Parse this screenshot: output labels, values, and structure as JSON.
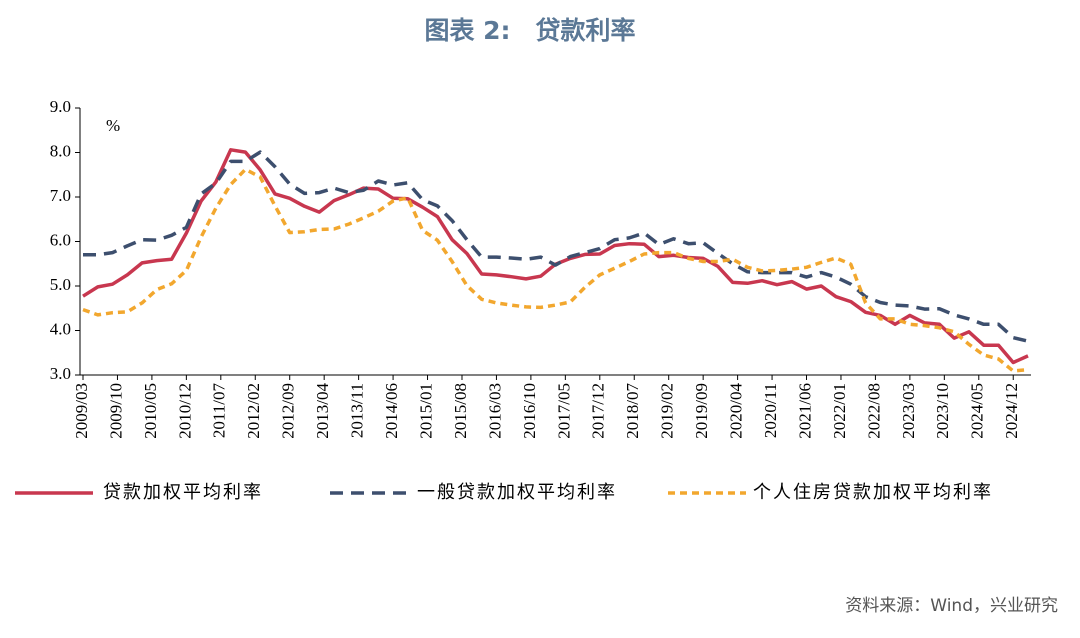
{
  "chart_data": {
    "type": "line",
    "title": "图表 2:　贷款利率",
    "y_unit": "%",
    "source": "资料来源：Wind，兴业研究",
    "x": [
      "2009/03",
      "2009/06",
      "2009/09",
      "2009/12",
      "2010/03",
      "2010/06",
      "2010/09",
      "2010/12",
      "2011/03",
      "2011/06",
      "2011/09",
      "2011/12",
      "2012/03",
      "2012/06",
      "2012/09",
      "2012/12",
      "2013/03",
      "2013/06",
      "2013/09",
      "2013/12",
      "2014/03",
      "2014/06",
      "2014/09",
      "2014/12",
      "2015/03",
      "2015/06",
      "2015/09",
      "2015/12",
      "2016/03",
      "2016/06",
      "2016/09",
      "2016/12",
      "2017/03",
      "2017/06",
      "2017/09",
      "2017/12",
      "2018/03",
      "2018/06",
      "2018/09",
      "2018/12",
      "2019/03",
      "2019/06",
      "2019/09",
      "2019/12",
      "2020/03",
      "2020/06",
      "2020/09",
      "2020/12",
      "2021/03",
      "2021/06",
      "2021/09",
      "2021/12",
      "2022/03",
      "2022/06",
      "2022/09",
      "2022/12",
      "2023/03",
      "2023/06",
      "2023/09",
      "2023/12",
      "2024/03",
      "2024/06",
      "2024/09",
      "2024/12",
      "2025/03"
    ],
    "xlim": [
      "2009/03",
      "2025/03"
    ],
    "xticks": [
      "2009/03",
      "2009/10",
      "2010/05",
      "2010/12",
      "2011/07",
      "2012/02",
      "2012/09",
      "2013/04",
      "2013/11",
      "2014/06",
      "2015/01",
      "2015/08",
      "2016/03",
      "2016/10",
      "2017/05",
      "2017/12",
      "2018/07",
      "2019/02",
      "2019/09",
      "2020/04",
      "2020/11",
      "2021/06",
      "2022/01",
      "2022/08",
      "2023/03",
      "2023/10",
      "2024/05",
      "2024/12"
    ],
    "ylim": [
      3,
      9
    ],
    "yticks": [
      {
        "value": 3,
        "label": "3.0"
      },
      {
        "value": 4,
        "label": "4.0"
      },
      {
        "value": 5,
        "label": "5.0"
      },
      {
        "value": 6,
        "label": "6.0"
      },
      {
        "value": 7,
        "label": "7.0"
      },
      {
        "value": 8,
        "label": "8.0"
      },
      {
        "value": 9,
        "label": "9.0"
      }
    ],
    "grid": false,
    "legend": "bottom",
    "series": [
      {
        "name": "贷款加权平均利率",
        "color": "#c8374f",
        "dash": "solid",
        "values": [
          4.77,
          4.98,
          5.04,
          5.25,
          5.52,
          5.57,
          5.6,
          6.19,
          6.91,
          7.34,
          8.06,
          8.01,
          7.61,
          7.07,
          6.97,
          6.79,
          6.66,
          6.92,
          7.05,
          7.2,
          7.18,
          6.97,
          6.96,
          6.77,
          6.56,
          6.04,
          5.73,
          5.27,
          5.25,
          5.21,
          5.16,
          5.22,
          5.49,
          5.62,
          5.71,
          5.72,
          5.91,
          5.95,
          5.94,
          5.66,
          5.69,
          5.64,
          5.62,
          5.44,
          5.08,
          5.06,
          5.12,
          5.03,
          5.1,
          4.93,
          5.0,
          4.76,
          4.65,
          4.41,
          4.34,
          4.14,
          4.34,
          4.17,
          4.14,
          3.83,
          3.97,
          3.67,
          3.67,
          3.28,
          3.43
        ]
      },
      {
        "name": "一般贷款加权平均利率",
        "color": "#3d4f6e",
        "dash": "dashed",
        "values": [
          5.7,
          5.7,
          5.75,
          5.9,
          6.04,
          6.03,
          6.14,
          6.32,
          7.07,
          7.31,
          7.8,
          7.8,
          8.01,
          7.68,
          7.29,
          7.08,
          7.1,
          7.2,
          7.1,
          7.15,
          7.36,
          7.27,
          7.32,
          6.94,
          6.8,
          6.47,
          6.04,
          5.65,
          5.65,
          5.63,
          5.6,
          5.65,
          5.47,
          5.66,
          5.75,
          5.84,
          6.04,
          6.08,
          6.19,
          5.93,
          6.06,
          5.95,
          5.97,
          5.73,
          5.5,
          5.32,
          5.3,
          5.3,
          5.3,
          5.2,
          5.3,
          5.2,
          5.04,
          4.76,
          4.63,
          4.57,
          4.55,
          4.48,
          4.49,
          4.35,
          4.26,
          4.14,
          4.14,
          3.84,
          3.76
        ]
      },
      {
        "name": "个人住房贷款加权平均利率",
        "color": "#f2a72e",
        "dash": "dotted",
        "values": [
          4.47,
          4.35,
          4.4,
          4.42,
          4.62,
          4.92,
          5.05,
          5.35,
          6.1,
          6.75,
          7.28,
          7.62,
          7.45,
          6.8,
          6.2,
          6.22,
          6.27,
          6.28,
          6.39,
          6.53,
          6.68,
          6.91,
          6.98,
          6.25,
          6.03,
          5.55,
          5.01,
          4.7,
          4.62,
          4.57,
          4.53,
          4.52,
          4.57,
          4.64,
          4.97,
          5.25,
          5.4,
          5.55,
          5.72,
          5.75,
          5.75,
          5.62,
          5.55,
          5.55,
          5.6,
          5.42,
          5.34,
          5.35,
          5.38,
          5.42,
          5.53,
          5.63,
          5.49,
          4.62,
          4.26,
          4.26,
          4.14,
          4.11,
          4.06,
          3.97,
          3.69,
          3.45,
          3.36,
          3.09,
          3.12
        ]
      }
    ]
  }
}
